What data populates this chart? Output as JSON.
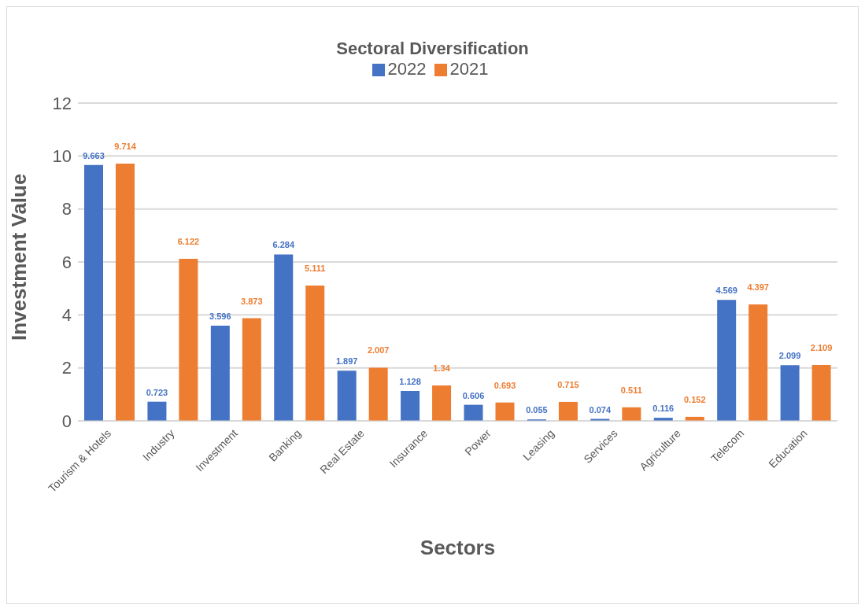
{
  "chart_data": {
    "type": "bar",
    "title": "Sectoral Diversification",
    "xlabel": "Sectors",
    "ylabel": "Investment Value",
    "categories": [
      "Tourism & Hotels",
      "Industry",
      "Investment",
      "Banking",
      "Real Estate",
      "Insurance",
      "Power",
      "Leasing",
      "Services",
      "Agriculture",
      "Telecom",
      "Education"
    ],
    "series": [
      {
        "name": "2022",
        "color": "#4472c4",
        "values": [
          9.663,
          0.723,
          3.596,
          6.284,
          1.897,
          1.128,
          0.606,
          0.055,
          0.074,
          0.116,
          4.569,
          2.099
        ]
      },
      {
        "name": "2021",
        "color": "#ed7d31",
        "values": [
          9.714,
          6.122,
          3.873,
          5.111,
          2.007,
          1.34,
          0.693,
          0.715,
          0.511,
          0.152,
          4.397,
          2.109
        ]
      }
    ],
    "ylim": [
      0,
      12
    ],
    "yticks": [
      0,
      2,
      4,
      6,
      8,
      10,
      12
    ],
    "grid": "y",
    "legend": "top",
    "data_labels": true
  }
}
